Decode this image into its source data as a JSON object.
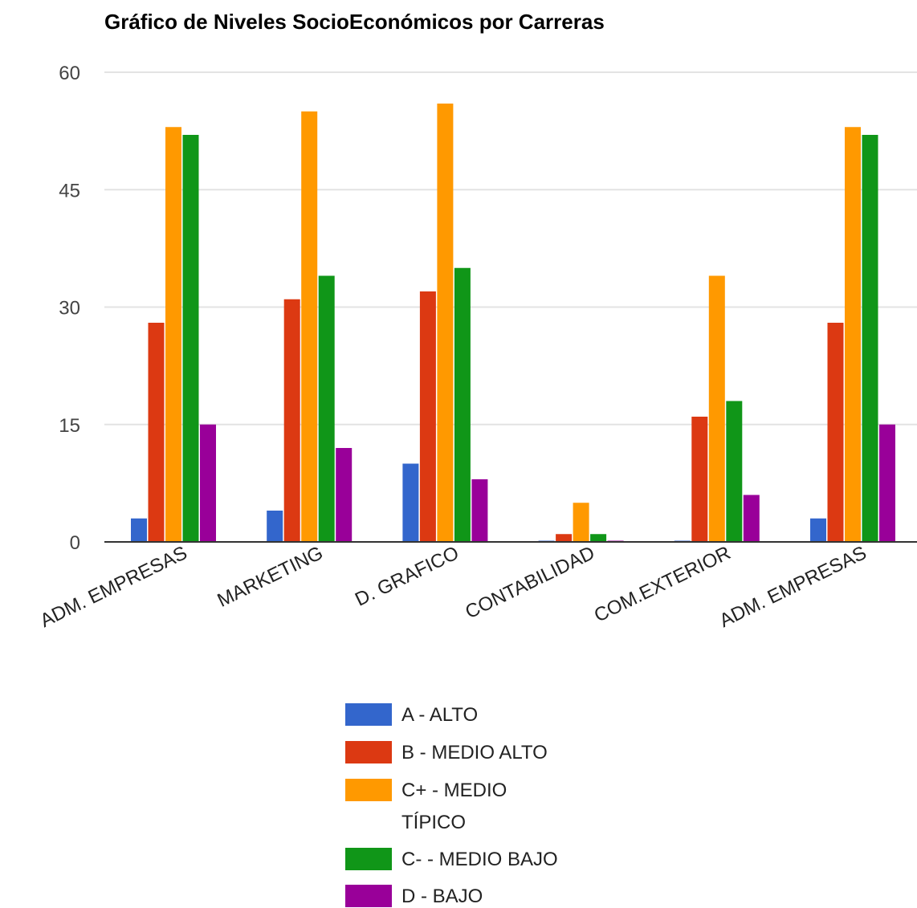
{
  "chart_data": {
    "type": "bar",
    "title": "Gráfico de Niveles SocioEconómicos por Carreras",
    "xlabel": "",
    "ylabel": "",
    "ylim": [
      0,
      60
    ],
    "yticks": [
      "0",
      "15",
      "30",
      "45",
      "60"
    ],
    "grid": true,
    "legend_position": "bottom",
    "categories": [
      "ADM. EMPRESAS",
      "MARKETING",
      "D. GRAFICO",
      "CONTABILIDAD",
      "COM.EXTERIOR",
      "ADM. EMPRESAS"
    ],
    "series": [
      {
        "name": "A - ALTO",
        "color": "#3366cc",
        "values": [
          3,
          4,
          10,
          0,
          0,
          3
        ]
      },
      {
        "name": "B - MEDIO ALTO",
        "color": "#dc3912",
        "values": [
          28,
          31,
          32,
          1,
          16,
          28
        ]
      },
      {
        "name": "C+ - MEDIO TÍPICO",
        "legend_lines": [
          "C+ - MEDIO",
          "TÍPICO"
        ],
        "color": "#ff9900",
        "values": [
          53,
          55,
          56,
          5,
          34,
          53
        ]
      },
      {
        "name": "C- - MEDIO BAJO",
        "color": "#109618",
        "values": [
          52,
          34,
          35,
          1,
          18,
          52
        ]
      },
      {
        "name": "D - BAJO",
        "color": "#990099",
        "values": [
          15,
          12,
          8,
          0,
          6,
          15
        ]
      }
    ]
  }
}
